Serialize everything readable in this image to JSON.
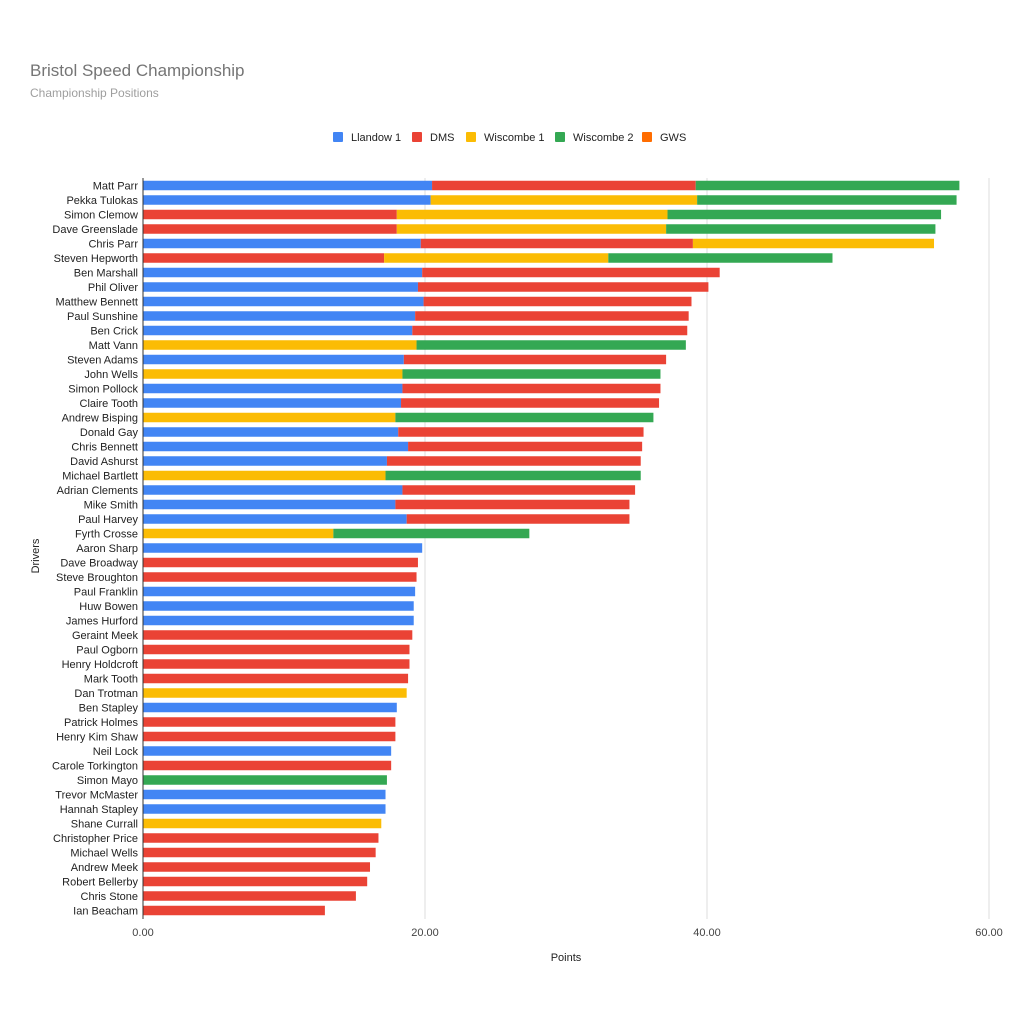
{
  "chart_data": {
    "type": "bar",
    "orientation": "horizontal",
    "stacked": true,
    "title": "Bristol Speed Championship",
    "subtitle": "Championship Positions",
    "xlabel": "Points",
    "ylabel": "Drivers",
    "xlim": [
      0,
      60
    ],
    "xticks": [
      "0.00",
      "20.00",
      "40.00",
      "60.00"
    ],
    "legend_position": "top",
    "grid": true,
    "series": [
      {
        "name": "Llandow 1",
        "color": "#4285F4"
      },
      {
        "name": "DMS",
        "color": "#EA4335"
      },
      {
        "name": "Wiscombe 1",
        "color": "#FBBC04"
      },
      {
        "name": "Wiscombe 2",
        "color": "#34A853"
      },
      {
        "name": "GWS",
        "color": "#FF6D01"
      }
    ],
    "drivers": [
      {
        "name": "Matt Parr",
        "values": [
          20.5,
          18.7,
          0,
          18.7,
          0
        ]
      },
      {
        "name": "Pekka Tulokas",
        "values": [
          20.4,
          0,
          18.9,
          18.4,
          0
        ]
      },
      {
        "name": "Simon Clemow",
        "values": [
          0,
          18.0,
          19.2,
          19.4,
          0
        ]
      },
      {
        "name": "Dave Greenslade",
        "values": [
          0,
          18.0,
          19.1,
          19.1,
          0
        ]
      },
      {
        "name": "Chris Parr",
        "values": [
          19.7,
          19.3,
          17.1,
          0,
          0
        ]
      },
      {
        "name": "Steven Hepworth",
        "values": [
          0,
          17.1,
          15.9,
          15.9,
          0
        ]
      },
      {
        "name": "Ben Marshall",
        "values": [
          19.8,
          21.1,
          0,
          0,
          0
        ]
      },
      {
        "name": "Phil Oliver",
        "values": [
          19.5,
          20.6,
          0,
          0,
          0
        ]
      },
      {
        "name": "Matthew Bennett",
        "values": [
          19.9,
          19.0,
          0,
          0,
          0
        ]
      },
      {
        "name": "Paul Sunshine",
        "values": [
          19.3,
          19.4,
          0,
          0,
          0
        ]
      },
      {
        "name": "Ben Crick",
        "values": [
          19.1,
          19.5,
          0,
          0,
          0
        ]
      },
      {
        "name": "Matt Vann",
        "values": [
          0,
          0,
          19.4,
          19.1,
          0
        ]
      },
      {
        "name": "Steven Adams",
        "values": [
          18.5,
          18.6,
          0,
          0,
          0
        ]
      },
      {
        "name": "John Wells",
        "values": [
          0,
          0,
          18.4,
          18.3,
          0
        ]
      },
      {
        "name": "Simon Pollock",
        "values": [
          18.4,
          18.3,
          0,
          0,
          0
        ]
      },
      {
        "name": "Claire Tooth",
        "values": [
          18.3,
          18.3,
          0,
          0,
          0
        ]
      },
      {
        "name": "Andrew Bisping",
        "values": [
          0,
          0,
          17.9,
          18.3,
          0
        ]
      },
      {
        "name": "Donald Gay",
        "values": [
          18.1,
          17.4,
          0,
          0,
          0
        ]
      },
      {
        "name": "Chris Bennett",
        "values": [
          18.8,
          16.6,
          0,
          0,
          0
        ]
      },
      {
        "name": "David Ashurst",
        "values": [
          17.3,
          18.0,
          0,
          0,
          0
        ]
      },
      {
        "name": "Michael Bartlett",
        "values": [
          0,
          0,
          17.2,
          18.1,
          0
        ]
      },
      {
        "name": "Adrian Clements",
        "values": [
          18.4,
          16.5,
          0,
          0,
          0
        ]
      },
      {
        "name": "Mike Smith",
        "values": [
          17.9,
          16.6,
          0,
          0,
          0
        ]
      },
      {
        "name": "Paul Harvey",
        "values": [
          18.7,
          15.8,
          0,
          0,
          0
        ]
      },
      {
        "name": "Fyrth Crosse",
        "values": [
          0,
          0,
          13.5,
          13.9,
          0
        ]
      },
      {
        "name": "Aaron Sharp",
        "values": [
          19.8,
          0,
          0,
          0,
          0
        ]
      },
      {
        "name": "Dave Broadway",
        "values": [
          0,
          19.5,
          0,
          0,
          0
        ]
      },
      {
        "name": "Steve Broughton",
        "values": [
          0,
          19.4,
          0,
          0,
          0
        ]
      },
      {
        "name": "Paul Franklin",
        "values": [
          19.3,
          0,
          0,
          0,
          0
        ]
      },
      {
        "name": "Huw Bowen",
        "values": [
          19.2,
          0,
          0,
          0,
          0
        ]
      },
      {
        "name": "James Hurford",
        "values": [
          19.2,
          0,
          0,
          0,
          0
        ]
      },
      {
        "name": "Geraint Meek",
        "values": [
          0,
          19.1,
          0,
          0,
          0
        ]
      },
      {
        "name": "Paul Ogborn",
        "values": [
          0,
          18.9,
          0,
          0,
          0
        ]
      },
      {
        "name": "Henry Holdcroft",
        "values": [
          0,
          18.9,
          0,
          0,
          0
        ]
      },
      {
        "name": "Mark Tooth",
        "values": [
          0,
          18.8,
          0,
          0,
          0
        ]
      },
      {
        "name": "Dan Trotman",
        "values": [
          0,
          0,
          18.7,
          0,
          0
        ]
      },
      {
        "name": "Ben Stapley",
        "values": [
          18.0,
          0,
          0,
          0,
          0
        ]
      },
      {
        "name": "Patrick Holmes",
        "values": [
          0,
          17.9,
          0,
          0,
          0
        ]
      },
      {
        "name": "Henry Kim Shaw",
        "values": [
          0,
          17.9,
          0,
          0,
          0
        ]
      },
      {
        "name": "Neil Lock",
        "values": [
          17.6,
          0,
          0,
          0,
          0
        ]
      },
      {
        "name": "Carole Torkington",
        "values": [
          0,
          17.6,
          0,
          0,
          0
        ]
      },
      {
        "name": "Simon Mayo",
        "values": [
          0,
          0,
          0,
          17.3,
          0
        ]
      },
      {
        "name": "Trevor McMaster",
        "values": [
          17.2,
          0,
          0,
          0,
          0
        ]
      },
      {
        "name": "Hannah Stapley",
        "values": [
          17.2,
          0,
          0,
          0,
          0
        ]
      },
      {
        "name": "Shane Currall",
        "values": [
          0,
          0,
          16.9,
          0,
          0
        ]
      },
      {
        "name": "Christopher Price",
        "values": [
          0,
          16.7,
          0,
          0,
          0
        ]
      },
      {
        "name": "Michael Wells",
        "values": [
          0,
          16.5,
          0,
          0,
          0
        ]
      },
      {
        "name": "Andrew Meek",
        "values": [
          0,
          16.1,
          0,
          0,
          0
        ]
      },
      {
        "name": "Robert Bellerby",
        "values": [
          0,
          15.9,
          0,
          0,
          0
        ]
      },
      {
        "name": "Chris Stone",
        "values": [
          0,
          15.1,
          0,
          0,
          0
        ]
      },
      {
        "name": "Ian Beacham",
        "values": [
          0,
          12.9,
          0,
          0,
          0
        ]
      }
    ]
  }
}
